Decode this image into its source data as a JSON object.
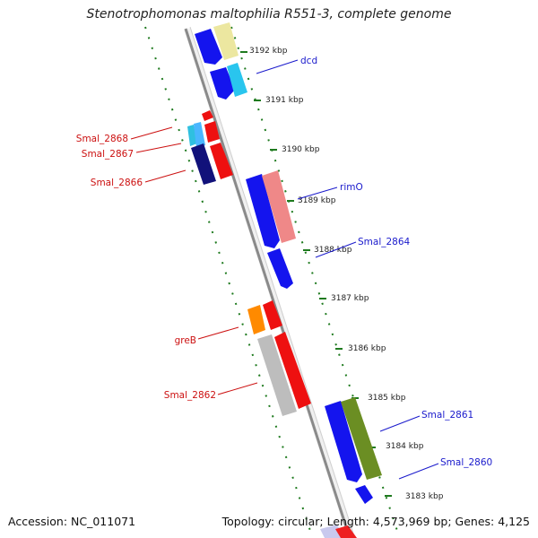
{
  "title": "Stenotrophomonas maltophilia R551-3, complete genome",
  "footer": {
    "accession": "Accession: NC_011071",
    "summary": "Topology: circular; Length: 4,573,969 bp; Genes: 4,125"
  },
  "ticks": [
    {
      "label": "3192 kbp",
      "kbp": 3192
    },
    {
      "label": "3191 kbp",
      "kbp": 3191
    },
    {
      "label": "3190 kbp",
      "kbp": 3190
    },
    {
      "label": "3189 kbp",
      "kbp": 3189
    },
    {
      "label": "3188 kbp",
      "kbp": 3188
    },
    {
      "label": "3187 kbp",
      "kbp": 3187
    },
    {
      "label": "3186 kbp",
      "kbp": 3186
    },
    {
      "label": "3185 kbp",
      "kbp": 3185
    },
    {
      "label": "3184 kbp",
      "kbp": 3184
    },
    {
      "label": "3183 kbp",
      "kbp": 3183
    }
  ],
  "gene_labels": [
    {
      "name": "dcd",
      "strand": "forward",
      "color": "#1a1acc"
    },
    {
      "name": "rimO",
      "strand": "forward",
      "color": "#1a1acc"
    },
    {
      "name": "Smal_2864",
      "strand": "forward",
      "color": "#1a1acc"
    },
    {
      "name": "Smal_2861",
      "strand": "forward",
      "color": "#1a1acc"
    },
    {
      "name": "Smal_2860",
      "strand": "forward",
      "color": "#1a1acc"
    },
    {
      "name": "Smal_2868",
      "strand": "reverse",
      "color": "#cc1111"
    },
    {
      "name": "Smal_2867",
      "strand": "reverse",
      "color": "#cc1111"
    },
    {
      "name": "Smal_2866",
      "strand": "reverse",
      "color": "#cc1111"
    },
    {
      "name": "greB",
      "strand": "reverse",
      "color": "#cc1111"
    },
    {
      "name": "Smal_2862",
      "strand": "reverse",
      "color": "#cc1111"
    }
  ],
  "colors": {
    "backbone": "#8a8a8a",
    "ruler_ticks": "#1e7a1e",
    "gene_forward": "#1010ee",
    "gene_reverse": "#ee1010"
  }
}
